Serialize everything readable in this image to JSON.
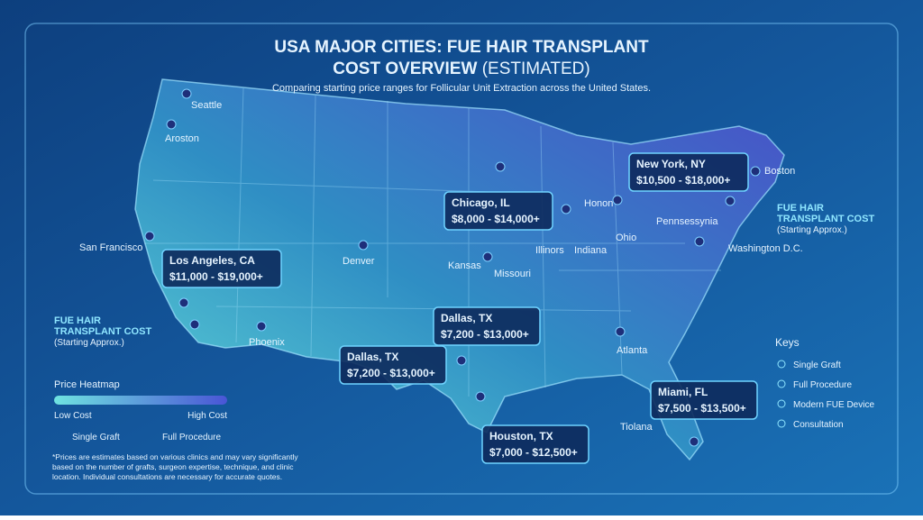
{
  "header": {
    "title_line1": "USA MAJOR CITIES: FUE HAIR TRANSPLANT",
    "title_line2": "COST OVERVIEW",
    "title_suffix": "(ESTIMATED)",
    "subtitle": "Comparing starting price ranges for Follicular Unit Extraction across the United States."
  },
  "map_labels": [
    "Seattle",
    "Aroston",
    "San Francisco",
    "Denver",
    "Kansas",
    "Missouri",
    "Illinors",
    "Indiana",
    "Ohio",
    "Honon",
    "Pennsessynia",
    "Boston",
    "Washington D.C.",
    "Phoenix",
    "Atlanta",
    "Tiolana"
  ],
  "price_cards": [
    {
      "city": "Los Angeles, CA",
      "range": "$11,000 - $19,000+"
    },
    {
      "city": "Chicago, IL",
      "range": "$8,000 - $14,000+"
    },
    {
      "city": "New York, NY",
      "range": "$10,500 - $18,000+"
    },
    {
      "city": "Dallas, TX",
      "range": "$7,200 - $13,000+"
    },
    {
      "city": "Dallas, TX",
      "range": "$7,200 - $13,000+"
    },
    {
      "city": "Houston, TX",
      "range": "$7,000 - $12,500+"
    },
    {
      "city": "Miami, FL",
      "range": "$7,500 - $13,500+"
    }
  ],
  "callouts": [
    {
      "lines": [
        "FUE HAIR",
        "TRANSPLANT COST"
      ],
      "note": "(Starting Approx.)"
    },
    {
      "lines": [
        "FUE HAIR",
        "TRANSPLANT COST"
      ],
      "note": "(Starting Approx.)"
    }
  ],
  "heatmap": {
    "title": "Price Heatmap",
    "low": "Low Cost",
    "high": "High Cost"
  },
  "legend": [
    "Single Graft",
    "Full Procedure"
  ],
  "keys": {
    "title": "Keys",
    "items": [
      "Single Graft",
      "Full Procedure",
      "Modern FUE Device",
      "Consultation"
    ]
  },
  "footnote": [
    "*Prices are estimates based on various clinics and may vary significantly",
    "based on the number of grafts, surgeon expertise, technique, and clinic",
    "location. Individual consultations are necessary for accurate quotes."
  ]
}
